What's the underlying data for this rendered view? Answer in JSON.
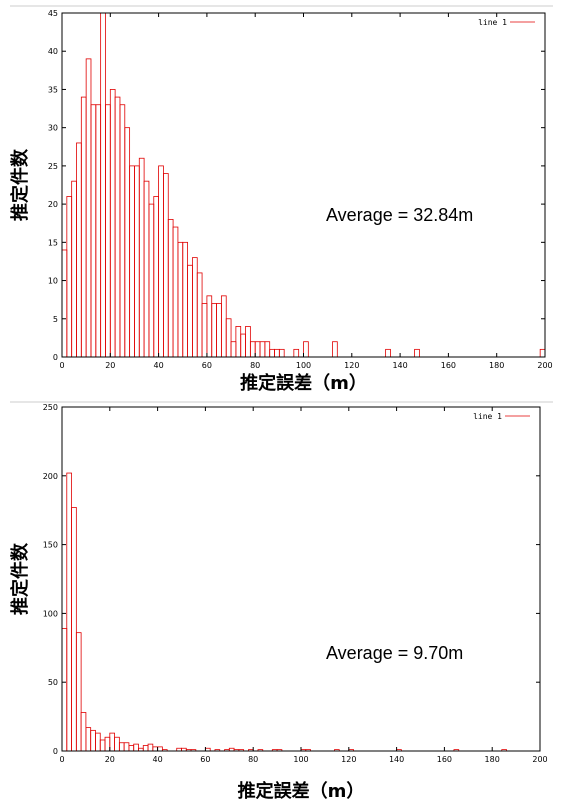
{
  "colors": {
    "bars": "#e00000",
    "frame": "#000000",
    "background": "#ffffff"
  },
  "chart_data": [
    {
      "type": "bar",
      "xlabel": "推定誤差（m）",
      "ylabel": "推定件数",
      "annotation": "Average = 32.84m",
      "legend": {
        "label": "line 1",
        "position": "top-right"
      },
      "xlim": [
        0,
        200
      ],
      "ylim": [
        0,
        45
      ],
      "xticks": [
        0,
        20,
        40,
        60,
        80,
        100,
        120,
        140,
        160,
        180,
        200
      ],
      "yticks": [
        0,
        5,
        10,
        15,
        20,
        25,
        30,
        35,
        40,
        45
      ],
      "bin_width": 2,
      "x": [
        0,
        2,
        4,
        6,
        8,
        10,
        12,
        14,
        16,
        18,
        20,
        22,
        24,
        26,
        28,
        30,
        32,
        34,
        36,
        38,
        40,
        42,
        44,
        46,
        48,
        50,
        52,
        54,
        56,
        58,
        60,
        62,
        64,
        66,
        68,
        70,
        72,
        74,
        76,
        78,
        80,
        82,
        84,
        86,
        88,
        90,
        92,
        94,
        96,
        98,
        100,
        102,
        104,
        106,
        108,
        110,
        112,
        114,
        116,
        118,
        120,
        122,
        124,
        126,
        128,
        130,
        132,
        134,
        136,
        138,
        140,
        142,
        144,
        146,
        148,
        150,
        152,
        154,
        156,
        158,
        160,
        162,
        164,
        166,
        168,
        170,
        172,
        174,
        176,
        178,
        180,
        182,
        184,
        186,
        188,
        190,
        192,
        194,
        196,
        198
      ],
      "values": [
        14,
        21,
        23,
        28,
        34,
        39,
        33,
        33,
        45,
        33,
        35,
        34,
        33,
        30,
        25,
        25,
        26,
        23,
        20,
        21,
        25,
        24,
        18,
        17,
        15,
        15,
        12,
        13,
        11,
        7,
        8,
        7,
        7,
        8,
        5,
        2,
        4,
        3,
        4,
        2,
        2,
        2,
        2,
        1,
        1,
        1,
        0,
        0,
        1,
        0,
        2,
        0,
        0,
        0,
        0,
        0,
        2,
        0,
        0,
        0,
        0,
        0,
        0,
        0,
        0,
        0,
        0,
        1,
        0,
        0,
        0,
        0,
        0,
        1,
        0,
        0,
        0,
        0,
        0,
        0,
        0,
        0,
        0,
        0,
        0,
        0,
        0,
        0,
        0,
        0,
        0,
        0,
        0,
        0,
        0,
        0,
        0,
        0,
        0,
        1
      ]
    },
    {
      "type": "bar",
      "xlabel": "推定誤差（m）",
      "ylabel": "推定件数",
      "annotation": "Average = 9.70m",
      "legend": {
        "label": "line 1",
        "position": "top-right"
      },
      "xlim": [
        0,
        200
      ],
      "ylim": [
        0,
        250
      ],
      "xticks": [
        0,
        20,
        40,
        60,
        80,
        100,
        120,
        140,
        160,
        180,
        200
      ],
      "yticks": [
        0,
        50,
        100,
        150,
        200,
        250
      ],
      "bin_width": 2,
      "x": [
        0,
        2,
        4,
        6,
        8,
        10,
        12,
        14,
        16,
        18,
        20,
        22,
        24,
        26,
        28,
        30,
        32,
        34,
        36,
        38,
        40,
        42,
        44,
        46,
        48,
        50,
        52,
        54,
        56,
        58,
        60,
        62,
        64,
        66,
        68,
        70,
        72,
        74,
        76,
        78,
        80,
        82,
        84,
        86,
        88,
        90,
        92,
        94,
        96,
        98,
        100,
        102,
        104,
        106,
        108,
        110,
        112,
        114,
        116,
        118,
        120,
        122,
        124,
        126,
        128,
        130,
        132,
        134,
        136,
        138,
        140,
        142,
        144,
        146,
        148,
        150,
        152,
        154,
        156,
        158,
        160,
        162,
        164,
        166,
        168,
        170,
        172,
        174,
        176,
        178,
        180,
        182,
        184,
        186,
        188,
        190,
        192,
        194,
        196,
        198
      ],
      "values": [
        89,
        202,
        177,
        86,
        28,
        17,
        15,
        13,
        8,
        10,
        13,
        10,
        6,
        6,
        4,
        5,
        2,
        4,
        5,
        3,
        3,
        1,
        0,
        0,
        2,
        2,
        1,
        1,
        0,
        0,
        2,
        0,
        1,
        0,
        1,
        2,
        1,
        1,
        0,
        1,
        0,
        1,
        0,
        0,
        1,
        1,
        0,
        0,
        0,
        0,
        1,
        1,
        0,
        0,
        0,
        0,
        0,
        1,
        0,
        0,
        1,
        0,
        0,
        0,
        0,
        0,
        0,
        0,
        0,
        0,
        1,
        0,
        0,
        0,
        0,
        0,
        0,
        0,
        0,
        0,
        0,
        0,
        1,
        0,
        0,
        0,
        0,
        0,
        0,
        0,
        0,
        0,
        1,
        0,
        0,
        0,
        0,
        0,
        0,
        0
      ]
    }
  ]
}
